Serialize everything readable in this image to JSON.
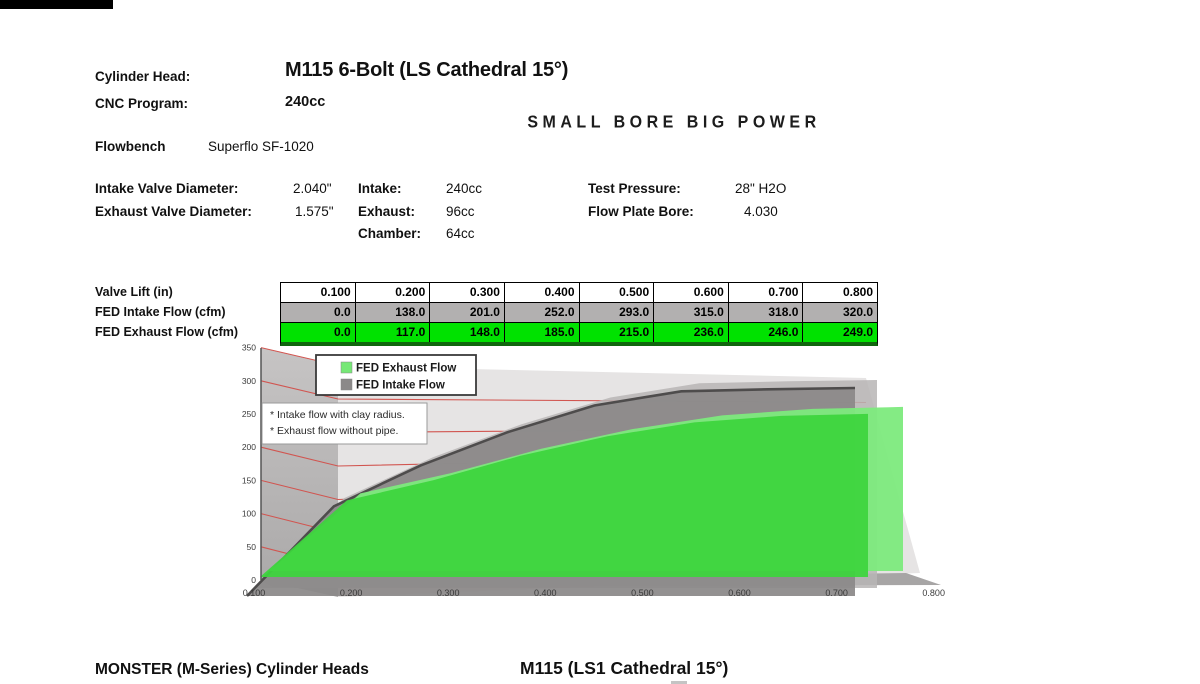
{
  "header": {
    "cylinder_head_label": "Cylinder Head:",
    "cylinder_head_value": "M115 6-Bolt (LS Cathedral 15°)",
    "cnc_program_label": "CNC Program:",
    "cnc_program_value": "240cc",
    "brand_wordmark": "SMALL BORE BIG POWER",
    "flowbench_label": "Flowbench",
    "flowbench_value": "Superflo SF-1020"
  },
  "specs": {
    "intake_valve_diameter_label": "Intake Valve Diameter:",
    "intake_valve_diameter_value": "2.040\"",
    "exhaust_valve_diameter_label": "Exhaust Valve Diameter:",
    "exhaust_valve_diameter_value": "1.575\"",
    "intake_label": "Intake:",
    "intake_value": "240cc",
    "exhaust_label": "Exhaust:",
    "exhaust_value": "96cc",
    "chamber_label": "Chamber:",
    "chamber_value": "64cc",
    "test_pressure_label": "Test Pressure:",
    "test_pressure_value": "28\" H2O",
    "flow_plate_bore_label": "Flow Plate Bore:",
    "flow_plate_bore_value": "4.030"
  },
  "flow_table": {
    "row_labels": [
      "Valve Lift (in)",
      "FED Intake Flow (cfm)",
      "FED Exhaust Flow (cfm)"
    ],
    "rows": [
      {
        "bg": "#ffffff",
        "cells": [
          "0.100",
          "0.200",
          "0.300",
          "0.400",
          "0.500",
          "0.600",
          "0.700",
          "0.800"
        ]
      },
      {
        "bg": "#b2b0b0",
        "cells": [
          "0.0",
          "138.0",
          "201.0",
          "252.0",
          "293.0",
          "315.0",
          "318.0",
          "320.0"
        ]
      },
      {
        "bg": "#00e200",
        "cells": [
          "0.0",
          "117.0",
          "148.0",
          "185.0",
          "215.0",
          "236.0",
          "246.0",
          "249.0"
        ]
      }
    ]
  },
  "chart_data": {
    "type": "area",
    "style": "3d",
    "x": [
      0.1,
      0.2,
      0.3,
      0.4,
      0.5,
      0.6,
      0.7,
      0.8
    ],
    "x_tick_labels": [
      "0.100",
      "0.200",
      "0.300",
      "0.400",
      "0.500",
      "0.600",
      "0.700",
      "0.800"
    ],
    "series": [
      {
        "name": "FED Intake Flow",
        "values": [
          0,
          138,
          201,
          252,
          293,
          315,
          318,
          320
        ],
        "color": "#8b8989",
        "accent": "#b7b5b5"
      },
      {
        "name": "FED Exhaust Flow",
        "values": [
          0,
          117,
          148,
          185,
          215,
          236,
          246,
          249
        ],
        "color": "#3ed43e",
        "accent": "#7dea7d"
      }
    ],
    "legend": {
      "entries": [
        "FED Exhaust Flow",
        "FED Intake Flow"
      ],
      "swatch_colors": [
        "#76e876",
        "#8b8989"
      ],
      "position": "top-left"
    },
    "annotations": [
      "* Intake flow with clay radius.",
      "* Exhaust flow without pipe."
    ],
    "ylim": [
      0,
      350
    ],
    "ytick_step": 50,
    "grid": true,
    "gridline_color": "#d15550",
    "wall_color": "#e6e4e4",
    "side_wall_color": "#bdbbbb",
    "floor_color": "#a7a5a5"
  },
  "footer": {
    "left_text": "MONSTER (M-Series) Cylinder Heads",
    "right_text": "M115 (LS1 Cathedral 15°)"
  }
}
